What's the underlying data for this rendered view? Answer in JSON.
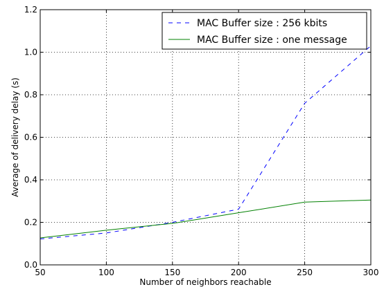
{
  "chart_data": {
    "type": "line",
    "title": "",
    "xlabel": "Number of neighbors reachable",
    "ylabel": "Average of delivery delay (s)",
    "xlim": [
      50,
      300
    ],
    "ylim": [
      0.0,
      1.2
    ],
    "x_ticks": [
      "50",
      "100",
      "150",
      "200",
      "250",
      "300"
    ],
    "y_ticks": [
      "0.0",
      "0.2",
      "0.4",
      "0.6",
      "0.8",
      "1.0",
      "1.2"
    ],
    "grid": true,
    "legend_position": "top-right",
    "x": [
      50,
      100,
      150,
      200,
      250,
      300
    ],
    "series": [
      {
        "name": "MAC Buffer size : 256 kbits",
        "values": [
          0.122,
          0.15,
          0.2,
          0.262,
          0.76,
          1.03
        ],
        "color": "#0000ff",
        "style": "dashed"
      },
      {
        "name": "MAC Buffer size : one message",
        "values": [
          0.127,
          0.163,
          0.195,
          0.245,
          0.295,
          0.305
        ],
        "color": "#008000",
        "style": "solid"
      }
    ]
  }
}
